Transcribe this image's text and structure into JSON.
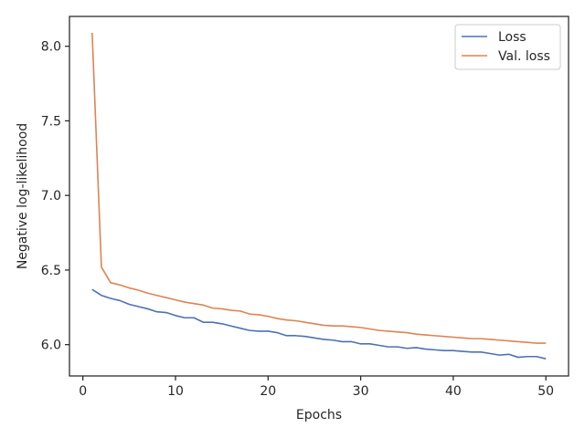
{
  "chart_data": {
    "type": "line",
    "xlabel": "Epochs",
    "ylabel": "Negative log-likelihood",
    "xlim": [
      -1.45,
      52.45
    ],
    "ylim": [
      5.79,
      8.2
    ],
    "xticks": [
      0,
      10,
      20,
      30,
      40,
      50
    ],
    "yticks": [
      6.0,
      6.5,
      7.0,
      7.5,
      8.0
    ],
    "xtick_labels": [
      "0",
      "10",
      "20",
      "30",
      "40",
      "50"
    ],
    "ytick_labels": [
      "6.0",
      "6.5",
      "7.0",
      "7.5",
      "8.0"
    ],
    "grid": false,
    "legend_position": "top-right",
    "x": [
      1,
      2,
      3,
      4,
      5,
      6,
      7,
      8,
      9,
      10,
      11,
      12,
      13,
      14,
      15,
      16,
      17,
      18,
      19,
      20,
      21,
      22,
      23,
      24,
      25,
      26,
      27,
      28,
      29,
      30,
      31,
      32,
      33,
      34,
      35,
      36,
      37,
      38,
      39,
      40,
      41,
      42,
      43,
      44,
      45,
      46,
      47,
      48,
      49,
      50
    ],
    "series": [
      {
        "name": "Loss",
        "color": "#4c72b0",
        "values": [
          6.37,
          6.33,
          6.31,
          6.295,
          6.27,
          6.255,
          6.24,
          6.22,
          6.215,
          6.195,
          6.18,
          6.18,
          6.15,
          6.15,
          6.14,
          6.125,
          6.11,
          6.095,
          6.09,
          6.09,
          6.08,
          6.06,
          6.06,
          6.055,
          6.045,
          6.035,
          6.03,
          6.02,
          6.02,
          6.005,
          6.005,
          5.995,
          5.985,
          5.985,
          5.975,
          5.98,
          5.97,
          5.965,
          5.96,
          5.96,
          5.955,
          5.95,
          5.95,
          5.94,
          5.93,
          5.935,
          5.915,
          5.92,
          5.92,
          5.905
        ]
      },
      {
        "name": "Val. loss",
        "color": "#dd8452",
        "values": [
          8.09,
          6.52,
          6.415,
          6.4,
          6.38,
          6.365,
          6.345,
          6.33,
          6.315,
          6.3,
          6.285,
          6.275,
          6.265,
          6.245,
          6.24,
          6.23,
          6.225,
          6.205,
          6.2,
          6.19,
          6.175,
          6.165,
          6.16,
          6.15,
          6.14,
          6.13,
          6.125,
          6.125,
          6.12,
          6.115,
          6.105,
          6.095,
          6.09,
          6.085,
          6.08,
          6.07,
          6.065,
          6.06,
          6.055,
          6.05,
          6.045,
          6.04,
          6.04,
          6.035,
          6.03,
          6.025,
          6.02,
          6.015,
          6.01,
          6.01
        ]
      }
    ]
  }
}
